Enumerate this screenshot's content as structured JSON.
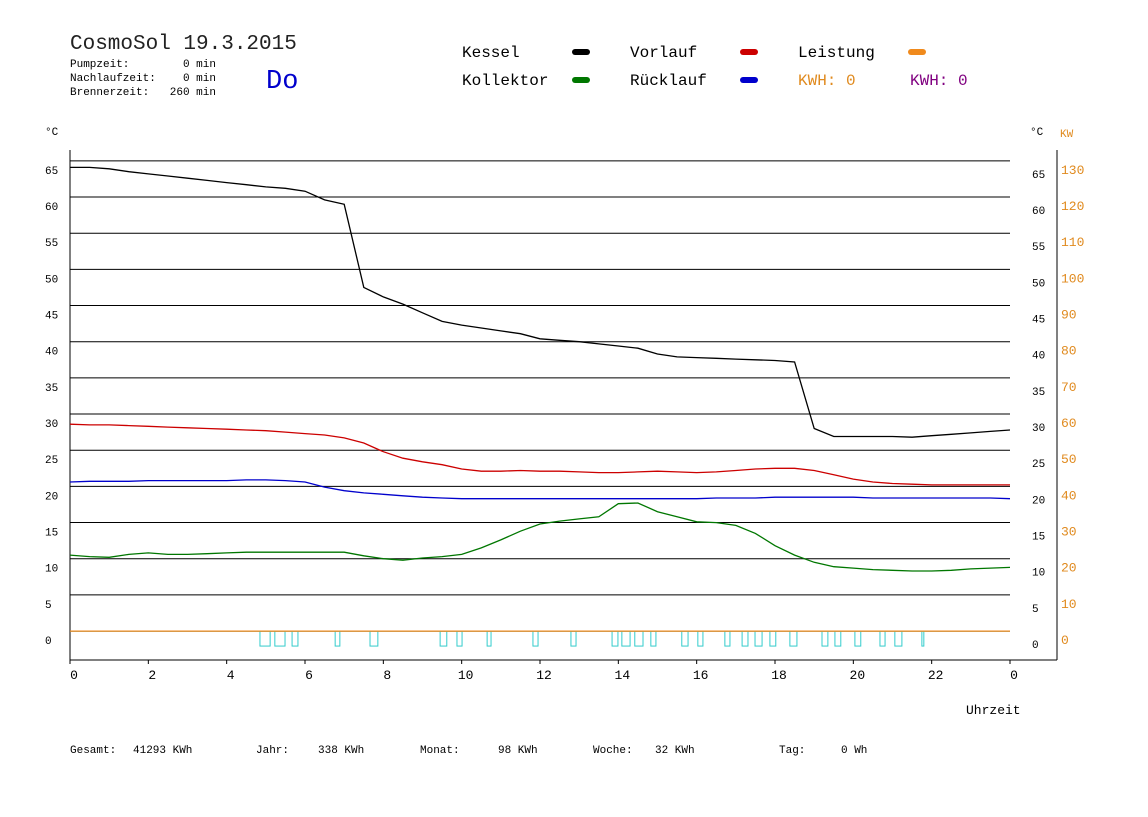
{
  "header": {
    "title": "CosmoSol 19.3.2015",
    "day": "Do",
    "times": [
      {
        "label": "Pumpzeit:",
        "value": "0 min"
      },
      {
        "label": "Nachlaufzeit:",
        "value": "0 min"
      },
      {
        "label": "Brennerzeit:",
        "value": "260 min"
      }
    ],
    "kwh": [
      {
        "text": "KWH: 0",
        "color": "#e08a1e"
      },
      {
        "text": "KWH: 0",
        "color": "#800080"
      }
    ]
  },
  "footer": [
    {
      "label": "Gesamt:",
      "value": "41293 KWh"
    },
    {
      "label": "Jahr:",
      "value": "338 KWh"
    },
    {
      "label": "Monat:",
      "value": "98 KWh"
    },
    {
      "label": "Woche:",
      "value": "32 KWh"
    },
    {
      "label": "Tag:",
      "value": "0 Wh"
    }
  ],
  "chart_data": {
    "type": "line",
    "y_label": "°C",
    "y2_label": "°C",
    "y2_unit": "KW",
    "x_label": "Uhrzeit",
    "grid": true,
    "xlim": [
      0,
      24
    ],
    "xticks": [
      0,
      2,
      4,
      6,
      8,
      10,
      12,
      14,
      16,
      18,
      20,
      22,
      {
        "value": 24,
        "label": "0"
      }
    ],
    "ylim": [
      -4,
      66.5
    ],
    "yticks": [
      0,
      5,
      10,
      15,
      20,
      25,
      30,
      35,
      40,
      45,
      50,
      55,
      60,
      65
    ],
    "y2lim": [
      -8,
      133
    ],
    "y2ticks": [
      0,
      10,
      20,
      30,
      40,
      50,
      60,
      70,
      80,
      90,
      100,
      110,
      120,
      130
    ],
    "x": [
      0,
      0.5,
      1,
      1.5,
      2,
      2.5,
      3,
      3.5,
      4,
      4.5,
      5,
      5.5,
      6,
      6.5,
      7,
      7.5,
      8,
      8.5,
      9,
      9.5,
      10,
      10.5,
      11,
      11.5,
      12,
      12.5,
      13,
      13.5,
      14,
      14.5,
      15,
      15.5,
      16,
      16.5,
      17,
      17.5,
      18,
      18.5,
      19,
      19.5,
      20,
      20.5,
      21,
      21.5,
      22,
      22.5,
      23,
      23.5,
      24
    ],
    "series": [
      {
        "name": "Kessel",
        "color": "#000000",
        "values": [
          64.1,
          64.1,
          63.9,
          63.5,
          63.2,
          62.9,
          62.6,
          62.3,
          62.0,
          61.7,
          61.4,
          61.2,
          60.8,
          59.6,
          59.0,
          47.5,
          46.2,
          45.2,
          44.0,
          42.8,
          42.3,
          41.9,
          41.5,
          41.1,
          40.4,
          40.2,
          40.0,
          39.7,
          39.4,
          39.1,
          38.3,
          37.9,
          37.8,
          37.7,
          37.6,
          37.5,
          37.4,
          37.2,
          28.0,
          26.9,
          26.9,
          26.9,
          26.9,
          26.8,
          27.0,
          27.2,
          27.4,
          27.6,
          27.8
        ]
      },
      {
        "name": "Vorlauf",
        "color": "#cc0000",
        "values": [
          28.6,
          28.5,
          28.5,
          28.4,
          28.3,
          28.2,
          28.1,
          28.0,
          27.9,
          27.8,
          27.7,
          27.5,
          27.3,
          27.1,
          26.7,
          26.0,
          24.8,
          23.9,
          23.4,
          23.0,
          22.4,
          22.1,
          22.1,
          22.2,
          22.1,
          22.1,
          22.0,
          21.9,
          21.9,
          22.0,
          22.1,
          22.0,
          21.9,
          22.0,
          22.2,
          22.4,
          22.5,
          22.5,
          22.2,
          21.6,
          21.0,
          20.6,
          20.4,
          20.3,
          20.2,
          20.2,
          20.2,
          20.2,
          20.2
        ]
      },
      {
        "name": "Rücklauf",
        "color": "#0000cc",
        "values": [
          20.6,
          20.7,
          20.7,
          20.7,
          20.8,
          20.8,
          20.8,
          20.8,
          20.8,
          20.9,
          20.9,
          20.8,
          20.6,
          19.9,
          19.4,
          19.1,
          18.9,
          18.7,
          18.5,
          18.4,
          18.3,
          18.3,
          18.3,
          18.3,
          18.3,
          18.3,
          18.3,
          18.3,
          18.3,
          18.3,
          18.3,
          18.3,
          18.3,
          18.4,
          18.4,
          18.4,
          18.5,
          18.5,
          18.5,
          18.5,
          18.5,
          18.4,
          18.4,
          18.4,
          18.4,
          18.4,
          18.4,
          18.4,
          18.3
        ]
      },
      {
        "name": "Kollektor",
        "color": "#007700",
        "values": [
          10.5,
          10.3,
          10.2,
          10.6,
          10.8,
          10.6,
          10.6,
          10.7,
          10.8,
          10.9,
          10.9,
          10.9,
          10.9,
          10.9,
          10.9,
          10.4,
          10.0,
          9.8,
          10.1,
          10.3,
          10.6,
          11.5,
          12.6,
          13.8,
          14.8,
          15.2,
          15.5,
          15.8,
          17.6,
          17.7,
          16.5,
          15.8,
          15.1,
          15.0,
          14.6,
          13.5,
          11.8,
          10.5,
          9.5,
          8.9,
          8.7,
          8.5,
          8.4,
          8.3,
          8.3,
          8.4,
          8.6,
          8.7,
          8.8
        ]
      },
      {
        "name": "Leistung",
        "color": "#f08a1c",
        "axis": "y2",
        "values": [
          0,
          0,
          0,
          0,
          0,
          0,
          0,
          0,
          0,
          0,
          0,
          0,
          0,
          0,
          0,
          0,
          0,
          0,
          0,
          0,
          0,
          0,
          0,
          0,
          0,
          0,
          0,
          0,
          0,
          0,
          0,
          0,
          0,
          0,
          0,
          0,
          0,
          0,
          0,
          0,
          0,
          0,
          0,
          0,
          0,
          0,
          0,
          0,
          0
        ]
      }
    ],
    "pump_color": "#33cccc",
    "pump_intervals": [
      [
        4.85,
        5.11
      ],
      [
        5.23,
        5.49
      ],
      [
        5.67,
        5.82
      ],
      [
        6.77,
        6.89
      ],
      [
        7.66,
        7.86
      ],
      [
        9.45,
        9.62
      ],
      [
        9.88,
        10.01
      ],
      [
        10.65,
        10.75
      ],
      [
        11.82,
        11.95
      ],
      [
        12.79,
        12.92
      ],
      [
        13.84,
        13.99
      ],
      [
        14.09,
        14.3
      ],
      [
        14.42,
        14.63
      ],
      [
        14.83,
        14.96
      ],
      [
        15.62,
        15.78
      ],
      [
        16.03,
        16.16
      ],
      [
        16.72,
        16.85
      ],
      [
        17.16,
        17.31
      ],
      [
        17.49,
        17.67
      ],
      [
        17.87,
        18.02
      ],
      [
        18.38,
        18.56
      ],
      [
        19.2,
        19.35
      ],
      [
        19.53,
        19.68
      ],
      [
        20.04,
        20.19
      ],
      [
        20.68,
        20.81
      ],
      [
        21.06,
        21.24
      ],
      [
        21.75,
        21.8
      ]
    ]
  }
}
